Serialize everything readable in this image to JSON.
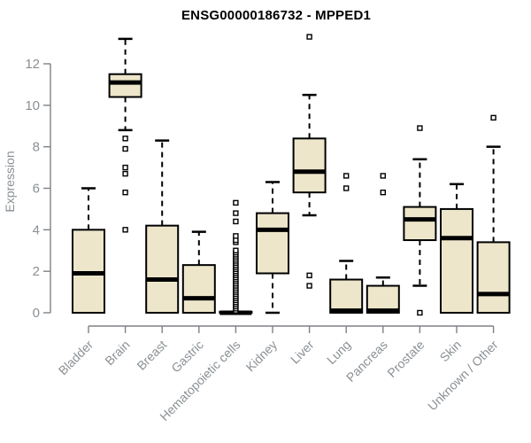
{
  "chart_data": {
    "type": "box",
    "title": "ENSG00000186732 - MPPED1",
    "ylabel": "Expression",
    "xlabel": "",
    "y_ticks": [
      0,
      2,
      4,
      6,
      8,
      10,
      12
    ],
    "ylim": [
      0,
      13.5
    ],
    "grid": false,
    "legend": "none",
    "categories": [
      "Bladder",
      "Brain",
      "Breast",
      "Gastric",
      "Hematopoietic cells",
      "Kidney",
      "Liver",
      "Lung",
      "Pancreas",
      "Prostate",
      "Skin",
      "Unknown / Other"
    ],
    "series": [
      {
        "category": "Bladder",
        "low": 0,
        "q1": 0,
        "median": 1.9,
        "q3": 4.0,
        "high": 6.0,
        "outliers": []
      },
      {
        "category": "Brain",
        "low": 8.8,
        "q1": 10.4,
        "median": 11.1,
        "q3": 11.5,
        "high": 13.2,
        "outliers": [
          8.4,
          7.9,
          7.0,
          6.7,
          5.8,
          4.0
        ]
      },
      {
        "category": "Breast",
        "low": 0,
        "q1": 0,
        "median": 1.6,
        "q3": 4.2,
        "high": 8.3,
        "outliers": []
      },
      {
        "category": "Gastric",
        "low": 0,
        "q1": 0,
        "median": 0.7,
        "q3": 2.3,
        "high": 3.9,
        "outliers": []
      },
      {
        "category": "Hematopoietic cells",
        "low": 0,
        "q1": 0,
        "median": 0,
        "q3": 0.05,
        "high": 0.05,
        "outliers": [
          0.1,
          0.2,
          0.3,
          0.4,
          0.5,
          0.6,
          0.7,
          0.8,
          0.9,
          1.0,
          1.1,
          1.2,
          1.3,
          1.4,
          1.5,
          1.6,
          1.7,
          1.8,
          1.9,
          2.0,
          2.1,
          2.2,
          2.3,
          2.4,
          2.5,
          2.6,
          2.7,
          2.8,
          2.9,
          3.0,
          3.4,
          3.5,
          3.7,
          4.4,
          4.8,
          5.3
        ]
      },
      {
        "category": "Kidney",
        "low": 0,
        "q1": 1.9,
        "median": 4.0,
        "q3": 4.8,
        "high": 6.3,
        "outliers": []
      },
      {
        "category": "Liver",
        "low": 4.7,
        "q1": 5.8,
        "median": 6.8,
        "q3": 8.4,
        "high": 10.5,
        "outliers": [
          13.3,
          1.8,
          1.3
        ]
      },
      {
        "category": "Lung",
        "low": 0,
        "q1": 0,
        "median": 0.1,
        "q3": 1.6,
        "high": 2.5,
        "outliers": [
          6.6,
          6.0
        ]
      },
      {
        "category": "Pancreas",
        "low": 0,
        "q1": 0,
        "median": 0.1,
        "q3": 1.3,
        "high": 1.7,
        "outliers": [
          6.6,
          5.8
        ]
      },
      {
        "category": "Prostate",
        "low": 1.3,
        "q1": 3.5,
        "median": 4.5,
        "q3": 5.1,
        "high": 7.4,
        "outliers": [
          8.9,
          0
        ]
      },
      {
        "category": "Skin",
        "low": 0,
        "q1": 0,
        "median": 3.6,
        "q3": 5.0,
        "high": 6.2,
        "outliers": []
      },
      {
        "category": "Unknown / Other",
        "low": 0,
        "q1": 0,
        "median": 0.9,
        "q3": 3.4,
        "high": 8.0,
        "outliers": [
          9.4
        ]
      }
    ],
    "colors": {
      "box_fill": "#EDE6CB",
      "box_border": "#000000",
      "axis": "#7E8285",
      "tick_label": "#8A9094",
      "title": "#000000",
      "background": "#FFFFFF"
    }
  }
}
